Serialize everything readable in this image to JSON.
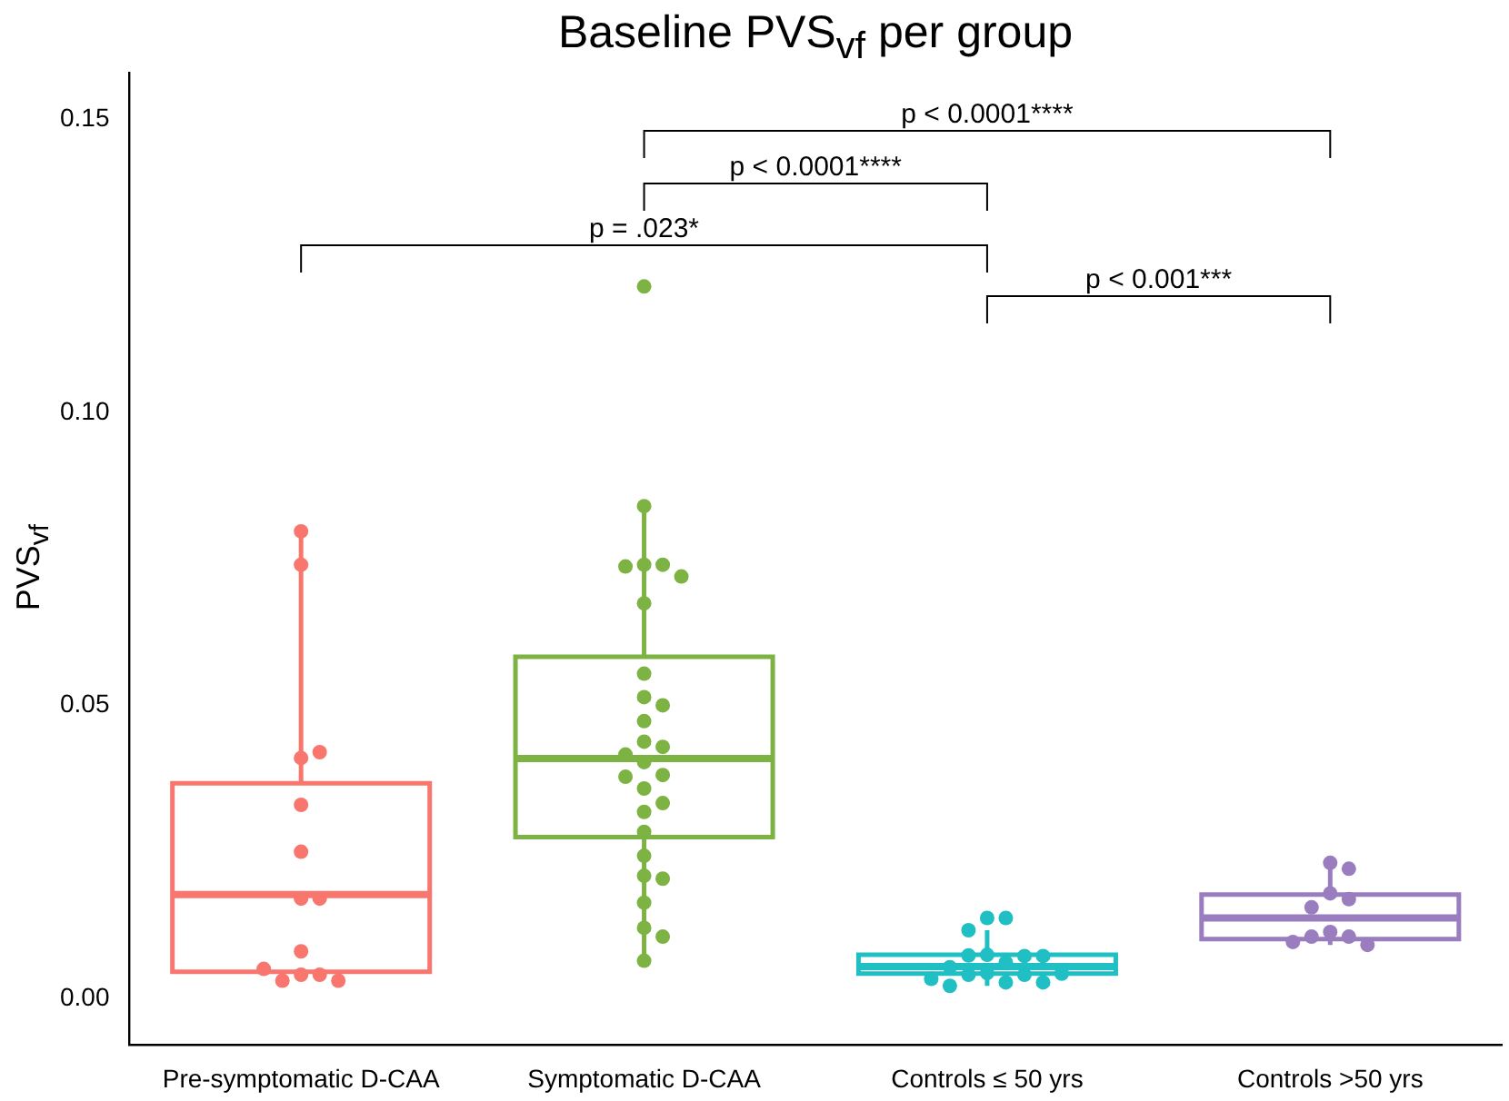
{
  "chart_data": {
    "type": "box",
    "title": "Baseline PVS$_{vf}$ per group",
    "ylabel": "PVS$_{vf}$",
    "categories": [
      "Pre-symptomatic D-CAA",
      "Symptomatic D-CAA",
      "Controls ≤ 50 yrs",
      "Controls >50 yrs"
    ],
    "colors": [
      "#f8766d",
      "#7cb342",
      "#1fbfc4",
      "#9a7dbf"
    ],
    "boxes": [
      {
        "low": 0.003,
        "q1": 0.0045,
        "median": 0.0177,
        "q3": 0.0367,
        "high": 0.0797
      },
      {
        "low": 0.0064,
        "q1": 0.0275,
        "median": 0.0409,
        "q3": 0.0583,
        "high": 0.084
      },
      {
        "low": 0.0021,
        "q1": 0.0042,
        "median": 0.0054,
        "q3": 0.0074,
        "high": 0.0116
      },
      {
        "low": 0.0091,
        "q1": 0.0101,
        "median": 0.0137,
        "q3": 0.0177,
        "high": 0.0221
      }
    ],
    "series": [
      {
        "type": "scatter",
        "color": "#f8766d",
        "x": [
          "Pre-symptomatic D-CAA",
          "Pre-symptomatic D-CAA",
          "Pre-symptomatic D-CAA",
          "Pre-symptomatic D-CAA",
          "Pre-symptomatic D-CAA",
          "Pre-symptomatic D-CAA",
          "Pre-symptomatic D-CAA",
          "Pre-symptomatic D-CAA",
          "Pre-symptomatic D-CAA",
          "Pre-symptomatic D-CAA",
          "Pre-symptomatic D-CAA",
          "Pre-symptomatic D-CAA",
          "Pre-symptomatic D-CAA",
          "Pre-symptomatic D-CAA"
        ],
        "values": [
          0.0797,
          0.074,
          0.041,
          0.042,
          0.033,
          0.025,
          0.017,
          0.017,
          0.008,
          0.004,
          0.004,
          0.003,
          0.003,
          0.005
        ]
      },
      {
        "type": "scatter",
        "color": "#7cb342",
        "x": [
          "Symptomatic D-CAA",
          "Symptomatic D-CAA",
          "Symptomatic D-CAA",
          "Symptomatic D-CAA",
          "Symptomatic D-CAA",
          "Symptomatic D-CAA",
          "Symptomatic D-CAA",
          "Symptomatic D-CAA",
          "Symptomatic D-CAA",
          "Symptomatic D-CAA",
          "Symptomatic D-CAA",
          "Symptomatic D-CAA",
          "Symptomatic D-CAA",
          "Symptomatic D-CAA",
          "Symptomatic D-CAA",
          "Symptomatic D-CAA",
          "Symptomatic D-CAA",
          "Symptomatic D-CAA",
          "Symptomatic D-CAA",
          "Symptomatic D-CAA",
          "Symptomatic D-CAA",
          "Symptomatic D-CAA",
          "Symptomatic D-CAA",
          "Symptomatic D-CAA",
          "Symptomatic D-CAA",
          "Symptomatic D-CAA",
          "Symptomatic D-CAA",
          "Symptomatic D-CAA"
        ],
        "values": [
          0.1215,
          0.084,
          0.074,
          0.074,
          0.0737,
          0.072,
          0.0674,
          0.0554,
          0.0514,
          0.05,
          0.0473,
          0.0438,
          0.0429,
          0.0416,
          0.0403,
          0.0381,
          0.0378,
          0.0358,
          0.0333,
          0.0318,
          0.0284,
          0.0243,
          0.0209,
          0.0204,
          0.0163,
          0.012,
          0.0105,
          0.0064
        ]
      },
      {
        "type": "scatter",
        "color": "#1fbfc4",
        "x": [
          "Controls ≤ 50 yrs",
          "Controls ≤ 50 yrs",
          "Controls ≤ 50 yrs",
          "Controls ≤ 50 yrs",
          "Controls ≤ 50 yrs",
          "Controls ≤ 50 yrs",
          "Controls ≤ 50 yrs",
          "Controls ≤ 50 yrs",
          "Controls ≤ 50 yrs",
          "Controls ≤ 50 yrs",
          "Controls ≤ 50 yrs",
          "Controls ≤ 50 yrs",
          "Controls ≤ 50 yrs",
          "Controls ≤ 50 yrs",
          "Controls ≤ 50 yrs",
          "Controls ≤ 50 yrs",
          "Controls ≤ 50 yrs"
        ],
        "values": [
          0.0074,
          0.0061,
          0.0043,
          0.004,
          0.004,
          0.0027,
          0.0021,
          0.0027,
          0.0033,
          0.0042,
          0.0053,
          0.0073,
          0.0137,
          0.0137,
          0.0116,
          0.0072,
          0.0072
        ]
      },
      {
        "type": "scatter",
        "color": "#9a7dbf",
        "x": [
          "Controls >50 yrs",
          "Controls >50 yrs",
          "Controls >50 yrs",
          "Controls >50 yrs",
          "Controls >50 yrs",
          "Controls >50 yrs",
          "Controls >50 yrs",
          "Controls >50 yrs",
          "Controls >50 yrs",
          "Controls >50 yrs"
        ],
        "values": [
          0.0231,
          0.0221,
          0.0179,
          0.0169,
          0.0155,
          0.0113,
          0.0105,
          0.0105,
          0.0091,
          0.0096
        ]
      }
    ],
    "ylim": [
      -0.008,
      0.158
    ],
    "yticks": [
      {
        "value": 0,
        "label": "0.00"
      },
      {
        "value": 0.05,
        "label": "0.05"
      },
      {
        "value": 0.1,
        "label": "0.10"
      },
      {
        "value": 0.15,
        "label": "0.15"
      }
    ],
    "annotations": [
      "p < 0.0001****",
      "p < 0.0001****",
      "p = .023*",
      "p < 0.001***"
    ],
    "grid": false,
    "legend": false,
    "marker": "circle"
  }
}
